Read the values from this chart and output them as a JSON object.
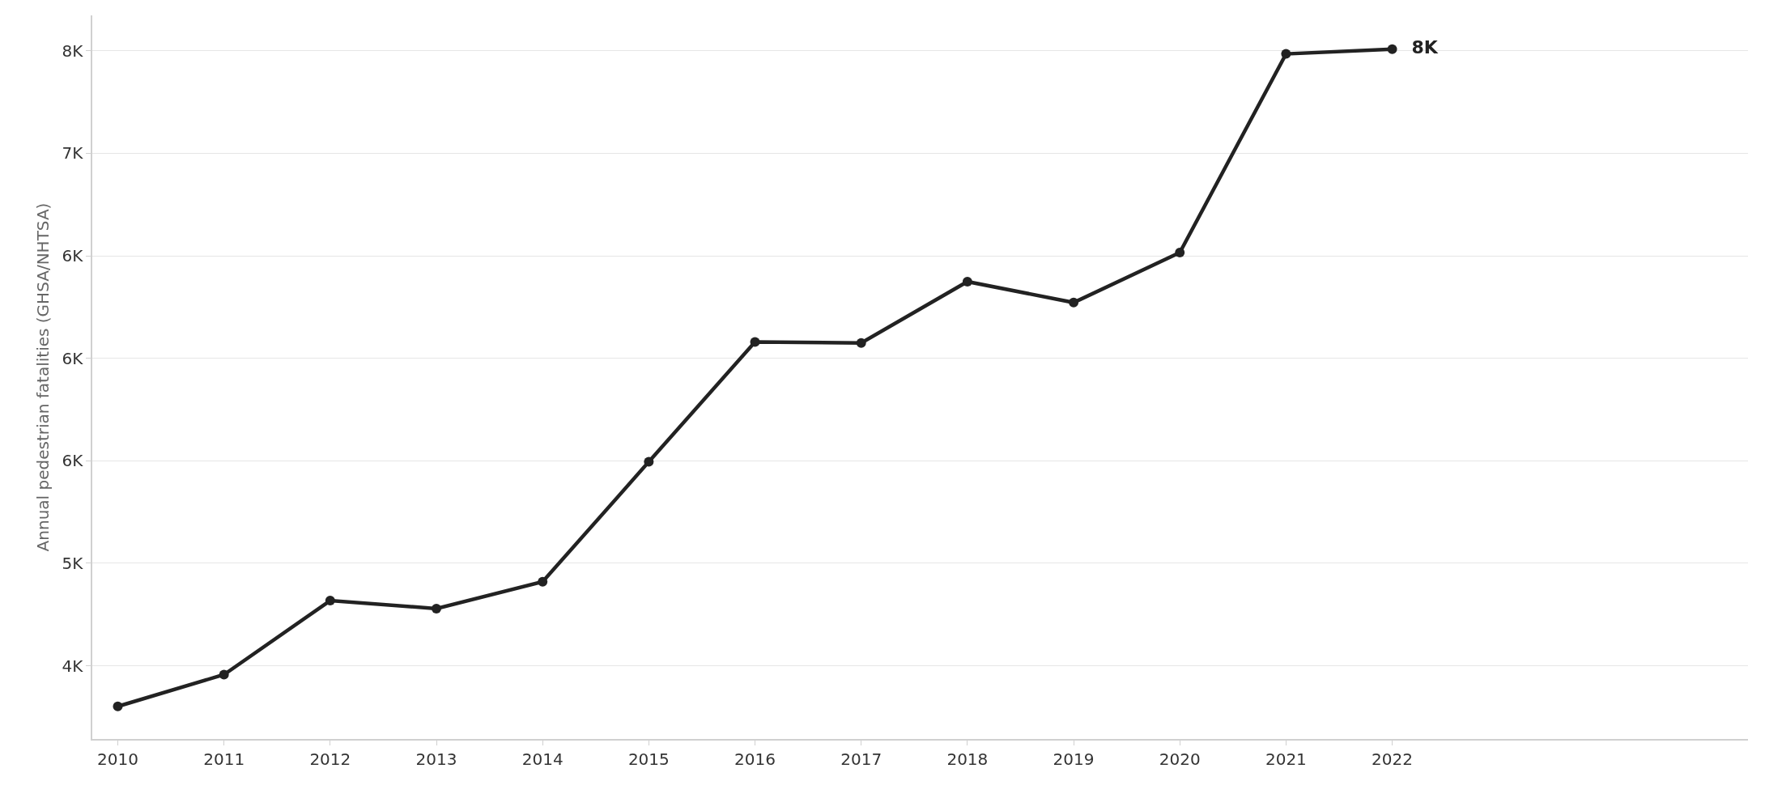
{
  "chart_data": {
    "type": "line",
    "ylabel": "Annual pedestrian fatalities (GHSA/NHTSA)",
    "x": [
      2010,
      2011,
      2012,
      2013,
      2014,
      2015,
      2016,
      2017,
      2018,
      2019,
      2020,
      2021,
      2022
    ],
    "series": [
      {
        "color": "#222222",
        "values": [
          4302,
          4457,
          4818,
          4779,
          4910,
          5495,
          6080,
          6075,
          6374,
          6272,
          6516,
          7485,
          7508
        ],
        "value_labels": [
          null,
          null,
          null,
          null,
          null,
          null,
          null,
          null,
          null,
          null,
          null,
          null,
          "8K"
        ]
      }
    ],
    "xlim": [
      2009.76,
      2025.35
    ],
    "xticks": [
      2010,
      2011,
      2012,
      2013,
      2014,
      2015,
      2016,
      2017,
      2018,
      2019,
      2020,
      2021,
      2022
    ],
    "ylim": [
      4143,
      7673
    ],
    "yticks": [
      {
        "value": 4500,
        "label": "4K"
      },
      {
        "value": 5000,
        "label": "5K"
      },
      {
        "value": 5500,
        "label": "6K"
      },
      {
        "value": 6000,
        "label": "6K"
      },
      {
        "value": 6500,
        "label": "6K"
      },
      {
        "value": 7000,
        "label": "7K"
      },
      {
        "value": 7500,
        "label": "8K"
      }
    ],
    "grid": "y",
    "marker": "circle",
    "line_style": "solid"
  }
}
